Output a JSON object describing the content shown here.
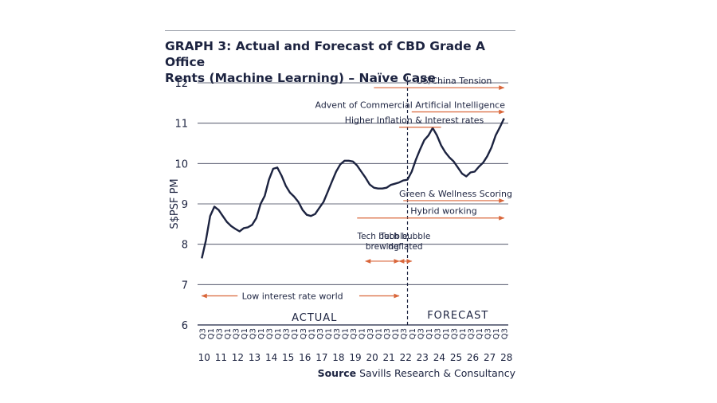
{
  "chart_data": {
    "type": "line",
    "title_line1": "GRAPH 3: Actual and Forecast of CBD Grade A Office",
    "title_line2": "Rents (Machine Learning) – Naïve Case",
    "ylabel": "S$PSF PM",
    "ylim": [
      6,
      12
    ],
    "yticks": [
      "6",
      "7",
      "8",
      "9",
      "10",
      "11",
      "12"
    ],
    "grid": true,
    "x_quarter_labels": [
      "Q3",
      "Q1",
      "Q3",
      "Q1",
      "Q3",
      "Q1",
      "Q3",
      "Q1",
      "Q3",
      "Q1",
      "Q3",
      "Q1",
      "Q3",
      "Q1",
      "Q3",
      "Q1",
      "Q3",
      "Q1",
      "Q3",
      "Q1",
      "Q3",
      "Q1",
      "Q3",
      "Q1",
      "Q3",
      "Q1",
      "Q3",
      "Q1",
      "Q3",
      "Q1",
      "Q3",
      "Q1",
      "Q3",
      "Q1",
      "Q3",
      "Q1",
      "Q3"
    ],
    "x_year_labels": [
      "10",
      "11",
      "12",
      "13",
      "14",
      "15",
      "16",
      "17",
      "18",
      "19",
      "20",
      "21",
      "22",
      "23",
      "24",
      "25",
      "26",
      "27",
      "28"
    ],
    "x": [
      2010.5,
      2010.75,
      2011,
      2011.25,
      2011.5,
      2011.75,
      2012,
      2012.25,
      2012.5,
      2012.75,
      2013,
      2013.25,
      2013.5,
      2013.75,
      2014,
      2014.25,
      2014.5,
      2014.75,
      2015,
      2015.25,
      2015.5,
      2015.75,
      2016,
      2016.25,
      2016.5,
      2016.75,
      2017,
      2017.25,
      2017.5,
      2017.75,
      2018,
      2018.25,
      2018.5,
      2018.75,
      2019,
      2019.25,
      2019.5,
      2019.75,
      2020,
      2020.25,
      2020.5,
      2020.75,
      2021,
      2021.25,
      2021.5,
      2021.75,
      2022,
      2022.25,
      2022.5,
      2022.75,
      2023,
      2023.25,
      2023.5,
      2023.75,
      2024,
      2024.25,
      2024.5,
      2024.75,
      2025,
      2025.25,
      2025.5,
      2025.75,
      2026,
      2026.25,
      2026.5,
      2026.75,
      2027,
      2027.25,
      2027.5,
      2027.75,
      2028,
      2028.25,
      2028.5
    ],
    "series": [
      {
        "values": [
          7.65,
          8.1,
          8.7,
          8.93,
          8.85,
          8.7,
          8.55,
          8.45,
          8.38,
          8.32,
          8.4,
          8.42,
          8.48,
          8.65,
          9.0,
          9.2,
          9.6,
          9.87,
          9.9,
          9.7,
          9.45,
          9.28,
          9.18,
          9.05,
          8.85,
          8.73,
          8.7,
          8.75,
          8.9,
          9.05,
          9.3,
          9.55,
          9.8,
          9.98,
          10.07,
          10.07,
          10.05,
          9.95,
          9.8,
          9.65,
          9.48,
          9.4,
          9.38,
          9.38,
          9.4,
          9.47,
          9.5,
          9.53,
          9.58,
          9.6,
          9.8,
          10.1,
          10.35,
          10.58,
          10.7,
          10.88,
          10.7,
          10.45,
          10.28,
          10.15,
          10.05,
          9.9,
          9.75,
          9.68,
          9.78,
          9.8,
          9.92,
          10.02,
          10.18,
          10.4,
          10.7,
          10.9,
          11.12
        ],
        "color": "#1c2340"
      }
    ],
    "forecast_divider_x": 2022.75,
    "phase_labels": {
      "actual": "ACTUAL",
      "forecast": "FORECAST"
    },
    "annotation_color": "#d9663a",
    "annotations": [
      {
        "text": "US/China Tension",
        "y": 11.88,
        "x_from": 2020.75,
        "x_to": 2028.5,
        "direction": "right"
      },
      {
        "text": "Advent of Commercial Artificial Intelligence",
        "y": 11.28,
        "x_from": 2023.0,
        "x_to": 2028.5,
        "direction": "right"
      },
      {
        "text": "Higher Inflation & Interest rates",
        "y": 10.9,
        "x_from": 2022.25,
        "x_to": 2024.75,
        "direction": "none"
      },
      {
        "text": "Green & Wellness Scoring",
        "y": 9.08,
        "x_from": 2022.5,
        "x_to": 2028.5,
        "direction": "right"
      },
      {
        "text": "Hybrid working",
        "y": 8.65,
        "x_from": 2019.75,
        "x_to": 2028.5,
        "direction": "right"
      },
      {
        "text_lines": [
          "Tech bubble",
          "brewing"
        ],
        "y": 7.58,
        "x_from": 2020.25,
        "x_to": 2022.25,
        "direction": "both"
      },
      {
        "text_lines": [
          "Tech bubble",
          "deflated"
        ],
        "y": 7.58,
        "x_from": 2022.25,
        "x_to": 2023.0,
        "direction": "both"
      },
      {
        "text": "Low interest rate world",
        "y": 6.72,
        "x_from": 2010.5,
        "x_to": 2022.25,
        "direction": "both"
      }
    ]
  },
  "source": {
    "label": "Source",
    "text": "Savills Research & Consultancy"
  }
}
